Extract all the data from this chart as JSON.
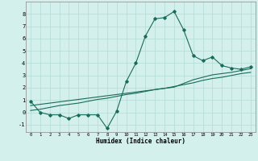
{
  "xlabel": "Humidex (Indice chaleur)",
  "ylabel": "",
  "bg_color": "#d4f0ec",
  "line_color": "#1a6b5a",
  "grid_color": "#b8ddd8",
  "xlim": [
    -0.5,
    23.5
  ],
  "ylim": [
    -1.6,
    9.0
  ],
  "xticks": [
    0,
    1,
    2,
    3,
    4,
    5,
    6,
    7,
    8,
    9,
    10,
    11,
    12,
    13,
    14,
    15,
    16,
    17,
    18,
    19,
    20,
    21,
    22,
    23
  ],
  "yticks": [
    -1,
    0,
    1,
    2,
    3,
    4,
    5,
    6,
    7,
    8
  ],
  "main_y": [
    0.9,
    0.0,
    -0.2,
    -0.2,
    -0.5,
    -0.2,
    -0.2,
    -0.2,
    -1.3,
    0.1,
    2.5,
    4.0,
    6.2,
    7.6,
    7.7,
    8.2,
    6.7,
    4.6,
    4.2,
    4.5,
    3.8,
    3.6,
    3.5,
    3.7
  ],
  "line1_y": [
    0.55,
    0.65,
    0.75,
    0.85,
    0.95,
    1.05,
    1.15,
    1.25,
    1.35,
    1.45,
    1.55,
    1.65,
    1.75,
    1.85,
    1.95,
    2.05,
    2.35,
    2.65,
    2.85,
    3.05,
    3.15,
    3.25,
    3.4,
    3.55
  ],
  "line2_y": [
    0.15,
    0.25,
    0.4,
    0.55,
    0.65,
    0.75,
    0.9,
    1.05,
    1.15,
    1.3,
    1.45,
    1.55,
    1.7,
    1.85,
    1.95,
    2.1,
    2.25,
    2.4,
    2.6,
    2.75,
    2.85,
    3.0,
    3.15,
    3.25
  ]
}
